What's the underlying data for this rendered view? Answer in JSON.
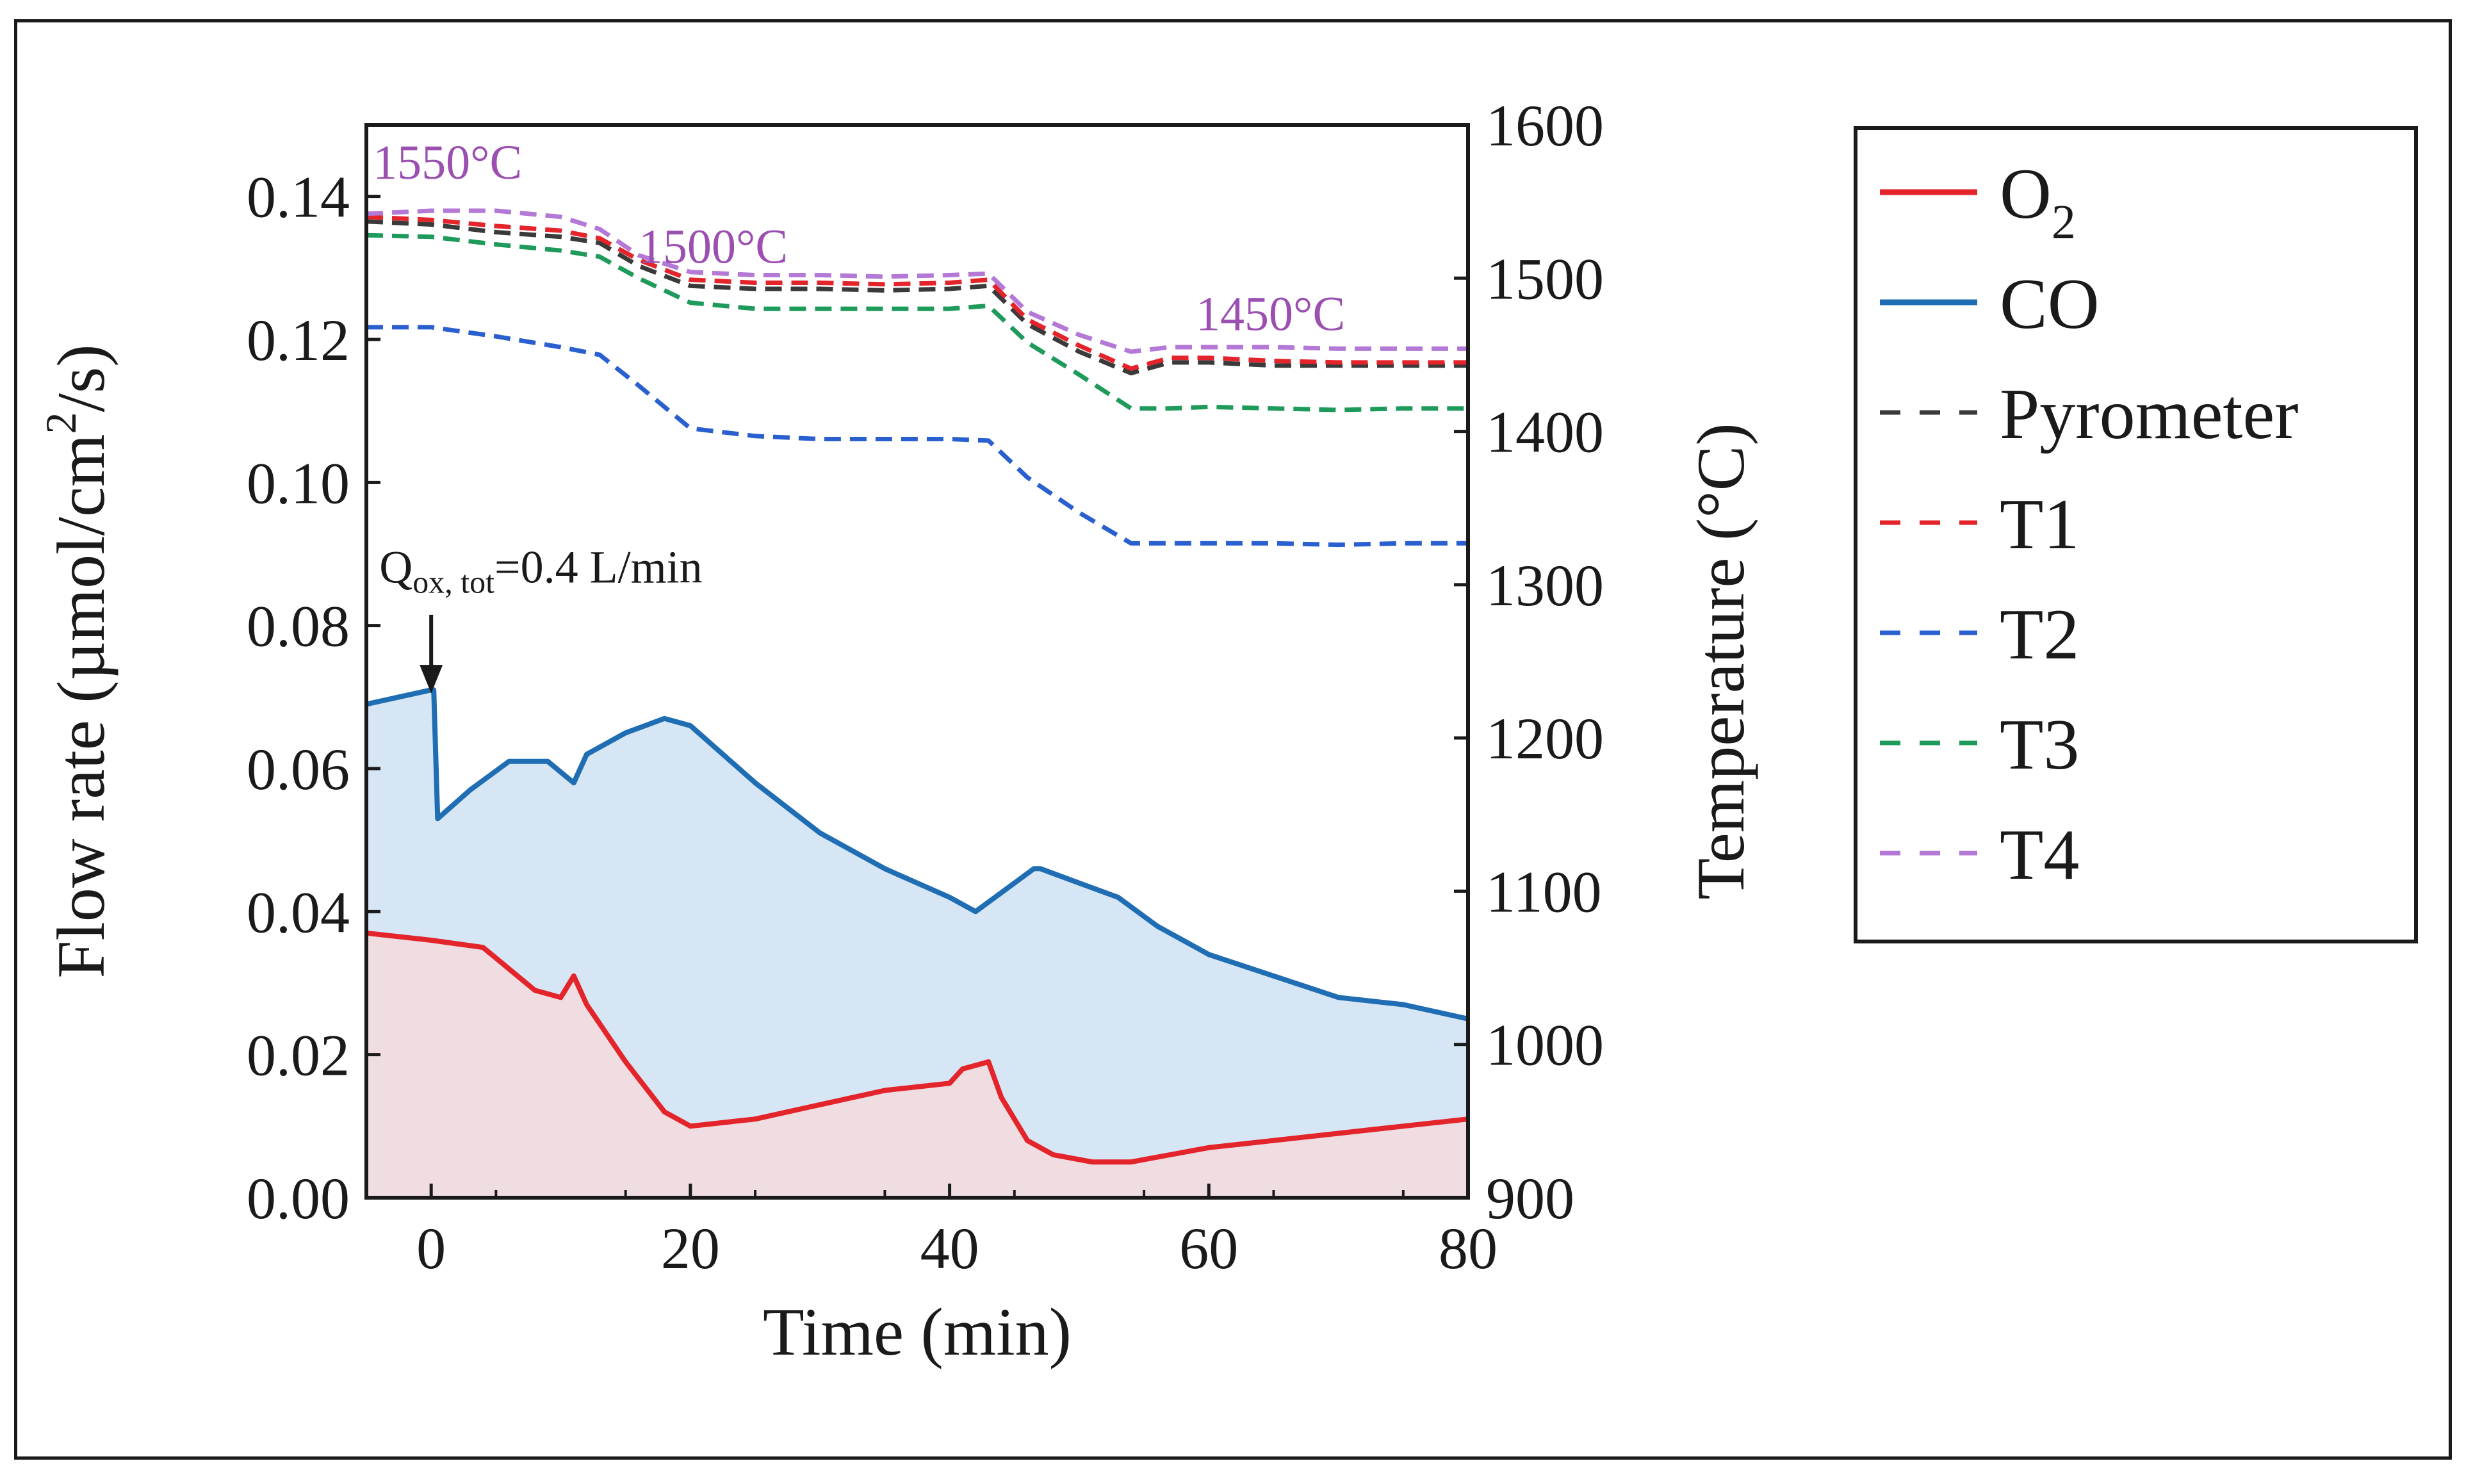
{
  "chart_data": {
    "type": "line",
    "title": "",
    "xlabel": "Time (min)",
    "ylabel_left": "Flow rate (µmol/cm²/s)",
    "ylabel_left_parts": {
      "main": "Flow rate (µmol/cm",
      "sup": "2",
      "tail": "/s)"
    },
    "ylabel_right": "Temperature (°C)",
    "xlim": [
      -5,
      80
    ],
    "ylim_left": [
      0,
      0.15
    ],
    "ylim_right": [
      900,
      1600
    ],
    "x_ticks": [
      0,
      20,
      40,
      60,
      80
    ],
    "x_tick_labels": [
      "0",
      "20",
      "40",
      "60",
      "80"
    ],
    "y_left_ticks": [
      0.0,
      0.02,
      0.04,
      0.06,
      0.08,
      0.1,
      0.12,
      0.14
    ],
    "y_left_tick_labels": [
      "0.00",
      "0.02",
      "0.04",
      "0.06",
      "0.08",
      "0.10",
      "0.12",
      "0.14"
    ],
    "y_right_ticks": [
      900,
      1000,
      1100,
      1200,
      1300,
      1400,
      1500,
      1600
    ],
    "y_right_tick_labels": [
      "900",
      "1000",
      "1100",
      "1200",
      "1300",
      "1400",
      "1500",
      "1600"
    ],
    "annotations": {
      "flow_label_main": "Q",
      "flow_label_sub": "ox, tot",
      "flow_label_tail": "=0.4 L/min",
      "arrow_x": 0,
      "temp_labels": [
        "1550°C",
        "1500°C",
        "1450°C"
      ]
    },
    "series": [
      {
        "name": "O2",
        "legend_main": "O",
        "legend_sub": "2",
        "axis": "left",
        "color": "#e3242b",
        "style": "solid",
        "fill": "#f0dde1",
        "x": [
          -5,
          0,
          4,
          8,
          10,
          11,
          12,
          15,
          18,
          20,
          25,
          30,
          35,
          40,
          41,
          43,
          44,
          46,
          48,
          51,
          54,
          57,
          60,
          65,
          70,
          75,
          80
        ],
        "y": [
          0.037,
          0.036,
          0.035,
          0.029,
          0.028,
          0.031,
          0.027,
          0.019,
          0.012,
          0.01,
          0.011,
          0.013,
          0.015,
          0.016,
          0.018,
          0.019,
          0.014,
          0.008,
          0.006,
          0.005,
          0.005,
          0.006,
          0.007,
          0.008,
          0.009,
          0.01,
          0.011
        ]
      },
      {
        "name": "CO",
        "legend_main": "CO",
        "legend_sub": "",
        "axis": "left",
        "color": "#1f6db3",
        "style": "solid",
        "fill": "#d6e6f4",
        "x": [
          -5,
          0,
          0.2,
          0.5,
          3,
          6,
          9,
          11,
          12,
          15,
          18,
          20,
          25,
          30,
          35,
          40,
          42,
          45,
          46.5,
          47,
          50,
          53,
          56,
          60,
          65,
          70,
          75,
          80
        ],
        "y": [
          0.069,
          0.071,
          0.071,
          0.053,
          0.057,
          0.061,
          0.061,
          0.058,
          0.062,
          0.065,
          0.067,
          0.066,
          0.058,
          0.051,
          0.046,
          0.042,
          0.04,
          0.044,
          0.046,
          0.046,
          0.044,
          0.042,
          0.038,
          0.034,
          0.031,
          0.028,
          0.027,
          0.025
        ]
      },
      {
        "name": "Pyrometer",
        "legend_main": "Pyrometer",
        "legend_sub": "",
        "axis": "right",
        "color": "#3a3a3a",
        "style": "dashed",
        "x": [
          -5,
          0,
          5,
          10,
          13,
          16,
          20,
          25,
          30,
          35,
          40,
          43,
          46,
          50,
          54,
          57,
          60,
          65,
          70,
          75,
          80
        ],
        "y": [
          1537,
          1535,
          1530,
          1527,
          1523,
          1508,
          1495,
          1493,
          1493,
          1492,
          1493,
          1495,
          1470,
          1452,
          1438,
          1445,
          1445,
          1443,
          1443,
          1443,
          1443
        ]
      },
      {
        "name": "T1",
        "legend_main": "T1",
        "legend_sub": "",
        "axis": "right",
        "color": "#e3242b",
        "style": "dashed",
        "x": [
          -5,
          0,
          5,
          10,
          13,
          16,
          20,
          25,
          30,
          35,
          40,
          43,
          46,
          50,
          54,
          57,
          60,
          65,
          70,
          75,
          80
        ],
        "y": [
          1540,
          1538,
          1534,
          1531,
          1526,
          1512,
          1499,
          1497,
          1497,
          1496,
          1497,
          1499,
          1473,
          1456,
          1441,
          1448,
          1448,
          1446,
          1445,
          1445,
          1445
        ]
      },
      {
        "name": "T2",
        "legend_main": "T2",
        "legend_sub": "",
        "axis": "right",
        "color": "#2a5fd0",
        "style": "dashed",
        "x": [
          -5,
          0,
          5,
          10,
          13,
          16,
          20,
          25,
          30,
          35,
          40,
          43,
          46,
          50,
          54,
          57,
          60,
          65,
          70,
          75,
          80
        ],
        "y": [
          1468,
          1468,
          1462,
          1455,
          1450,
          1430,
          1402,
          1397,
          1395,
          1395,
          1395,
          1394,
          1370,
          1347,
          1327,
          1327,
          1327,
          1327,
          1326,
          1327,
          1327
        ]
      },
      {
        "name": "T3",
        "legend_main": "T3",
        "legend_sub": "",
        "axis": "right",
        "color": "#1e9a5a",
        "style": "dashed",
        "x": [
          -5,
          0,
          5,
          10,
          13,
          16,
          20,
          25,
          30,
          35,
          40,
          43,
          46,
          50,
          54,
          57,
          60,
          65,
          70,
          75,
          80
        ],
        "y": [
          1528,
          1527,
          1522,
          1518,
          1514,
          1500,
          1484,
          1480,
          1480,
          1480,
          1480,
          1482,
          1458,
          1437,
          1415,
          1415,
          1416,
          1415,
          1414,
          1415,
          1415
        ]
      },
      {
        "name": "T4",
        "legend_main": "T4",
        "legend_sub": "",
        "axis": "right",
        "color": "#b478d6",
        "style": "dashed",
        "x": [
          -5,
          0,
          5,
          10,
          13,
          16,
          20,
          25,
          30,
          35,
          40,
          43,
          46,
          50,
          54,
          57,
          60,
          65,
          70,
          75,
          80
        ],
        "y": [
          1542,
          1544,
          1544,
          1540,
          1532,
          1515,
          1504,
          1502,
          1502,
          1501,
          1502,
          1503,
          1478,
          1463,
          1452,
          1455,
          1455,
          1455,
          1454,
          1454,
          1454
        ]
      }
    ]
  }
}
